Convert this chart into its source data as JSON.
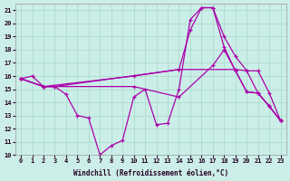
{
  "xlabel": "Windchill (Refroidissement éolien,°C)",
  "background_color": "#cceee8",
  "grid_color": "#aaddcc",
  "line_color": "#aa00aa",
  "xlim": [
    -0.5,
    23.5
  ],
  "ylim": [
    10,
    21.5
  ],
  "yticks": [
    10,
    11,
    12,
    13,
    14,
    15,
    16,
    17,
    18,
    19,
    20,
    21
  ],
  "xticks": [
    0,
    1,
    2,
    3,
    4,
    5,
    6,
    7,
    8,
    9,
    10,
    11,
    12,
    13,
    14,
    15,
    16,
    17,
    18,
    19,
    20,
    21,
    22,
    23
  ],
  "lines": [
    {
      "x": [
        0,
        1,
        2,
        3,
        4,
        5,
        6,
        7,
        8,
        9,
        10,
        11,
        12,
        13,
        14,
        15,
        16,
        17,
        18,
        19,
        20,
        21,
        22,
        23
      ],
      "y": [
        15.8,
        16.0,
        15.2,
        15.2,
        14.6,
        13.0,
        12.8,
        10.0,
        10.7,
        11.1,
        14.4,
        15.0,
        12.3,
        12.4,
        15.0,
        20.3,
        21.2,
        21.2,
        19.0,
        17.5,
        16.4,
        14.7,
        13.7,
        12.6
      ]
    },
    {
      "x": [
        0,
        2,
        3,
        14,
        15,
        16,
        17,
        18,
        19,
        20,
        21,
        22,
        23
      ],
      "y": [
        15.8,
        15.2,
        15.2,
        16.5,
        19.5,
        21.2,
        21.2,
        18.2,
        16.4,
        14.8,
        14.7,
        13.7,
        12.6
      ]
    },
    {
      "x": [
        0,
        2,
        10,
        14,
        19,
        20,
        21,
        22,
        23
      ],
      "y": [
        15.8,
        15.2,
        16.0,
        16.5,
        16.5,
        16.4,
        16.4,
        14.7,
        12.6
      ]
    },
    {
      "x": [
        0,
        2,
        10,
        14,
        17,
        18,
        19,
        20,
        21,
        22,
        23
      ],
      "y": [
        15.8,
        15.2,
        15.2,
        14.4,
        16.8,
        18.0,
        16.4,
        14.8,
        14.7,
        13.7,
        12.6
      ]
    }
  ]
}
